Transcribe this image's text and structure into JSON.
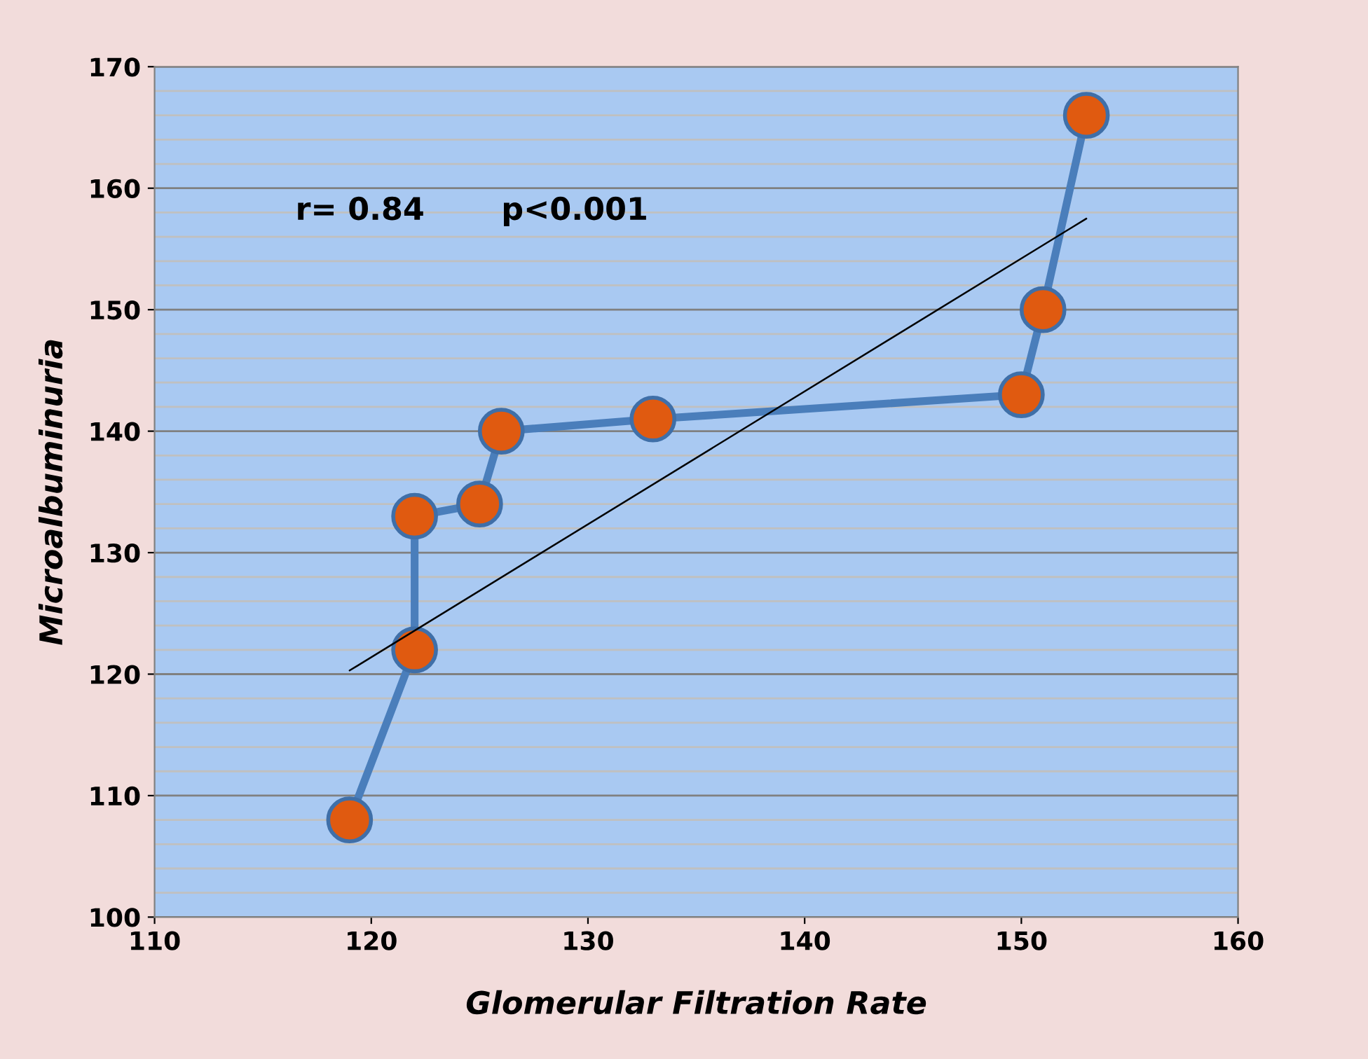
{
  "chart_data": {
    "type": "line",
    "xlabel": "Glomerular Filtration Rate",
    "ylabel": "Microalbuminuria",
    "annotations": [
      "r= 0.84",
      "p<0.001"
    ],
    "series": [
      {
        "color": "#4a7ebb",
        "marker": "circle",
        "x": [
          119,
          122,
          122,
          125,
          126,
          133,
          150,
          151,
          153
        ],
        "values": [
          108,
          122,
          133,
          134,
          140,
          141,
          143,
          150,
          166
        ]
      },
      {
        "color": "#000000",
        "marker": "none",
        "x": [
          119,
          153
        ],
        "values": [
          120.3,
          157.5
        ]
      }
    ],
    "xlim": [
      110,
      160
    ],
    "xticks": [
      110,
      120,
      130,
      140,
      150,
      160
    ],
    "ylim": [
      100,
      170
    ],
    "yticks": [
      100,
      {
        "value": 102,
        "label": null
      },
      {
        "value": 104,
        "label": null
      },
      {
        "value": 106,
        "label": null
      },
      {
        "value": 108,
        "label": null
      },
      110,
      {
        "value": 112,
        "label": null
      },
      {
        "value": 114,
        "label": null
      },
      {
        "value": 116,
        "label": null
      },
      {
        "value": 118,
        "label": null
      },
      120,
      {
        "value": 122,
        "label": null
      },
      {
        "value": 124,
        "label": null
      },
      {
        "value": 126,
        "label": null
      },
      {
        "value": 128,
        "label": null
      },
      130,
      {
        "value": 132,
        "label": null
      },
      {
        "value": 134,
        "label": null
      },
      {
        "value": 136,
        "label": null
      },
      {
        "value": 138,
        "label": null
      },
      140,
      {
        "value": 142,
        "label": null
      },
      {
        "value": 144,
        "label": null
      },
      {
        "value": 146,
        "label": null
      },
      {
        "value": 148,
        "label": null
      },
      150,
      {
        "value": 152,
        "label": null
      },
      {
        "value": 154,
        "label": null
      },
      {
        "value": 156,
        "label": null
      },
      {
        "value": 158,
        "label": null
      },
      160,
      {
        "value": 162,
        "label": null
      },
      {
        "value": 164,
        "label": null
      },
      {
        "value": 166,
        "label": null
      },
      {
        "value": 168,
        "label": null
      },
      170
    ],
    "grid": "y",
    "legend": false
  }
}
